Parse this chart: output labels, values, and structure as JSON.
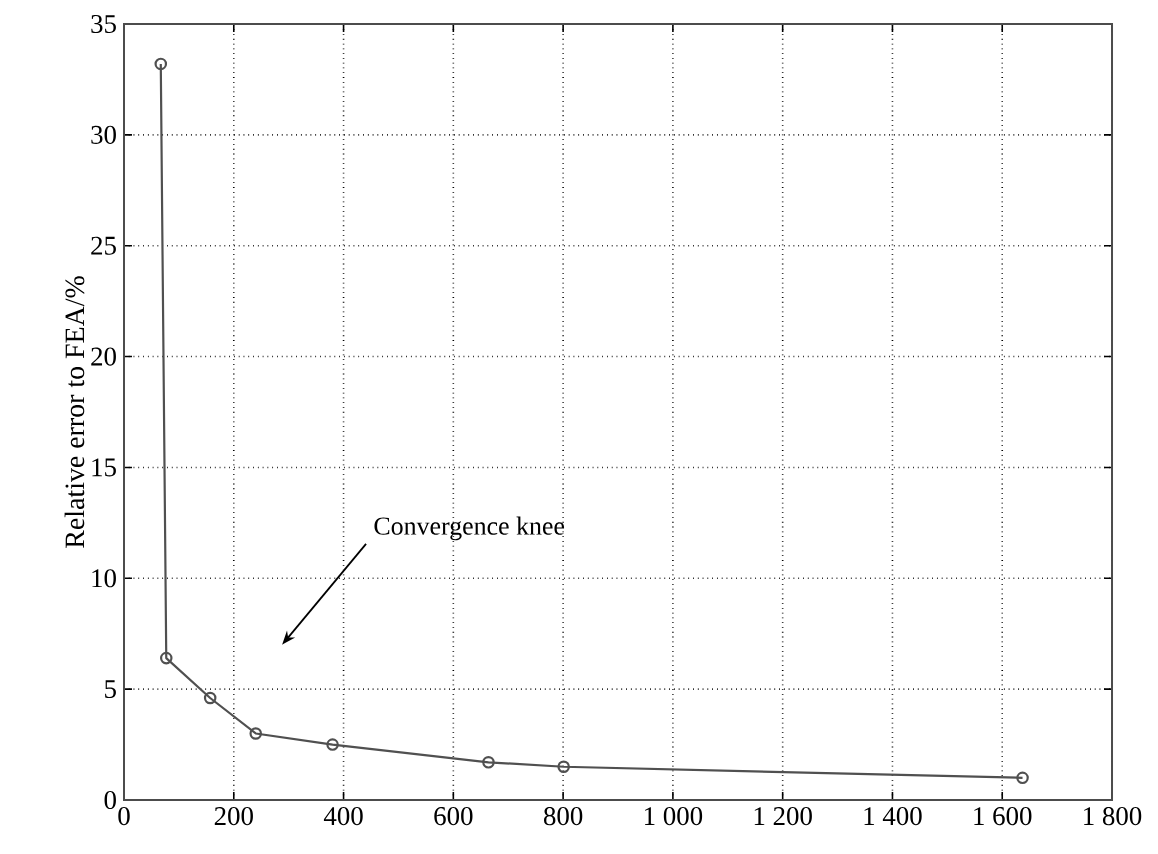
{
  "chart_data": {
    "type": "line",
    "ylabel": "Relative error to FEA/%",
    "x": [
      67,
      77,
      157,
      240,
      380,
      664,
      801,
      1637
    ],
    "values": [
      33.2,
      6.4,
      4.6,
      3.0,
      2.5,
      1.7,
      1.5,
      1.0
    ],
    "color": "#505050",
    "marker": "circle",
    "line_style": "solid",
    "grid": true,
    "xlim": [
      0,
      1800
    ],
    "xticks": [
      0,
      200,
      400,
      600,
      800,
      {
        "value": 1000,
        "label": "1 000"
      },
      {
        "value": 1200,
        "label": "1 200"
      },
      {
        "value": 1400,
        "label": "1 400"
      },
      {
        "value": 1600,
        "label": "1 600"
      },
      {
        "value": 1800,
        "label": "1 800"
      }
    ],
    "ylim": [
      0,
      35
    ],
    "yticks": [
      0,
      5,
      10,
      15,
      20,
      25,
      30,
      35
    ],
    "annotations": [
      "Convergence knee"
    ]
  }
}
